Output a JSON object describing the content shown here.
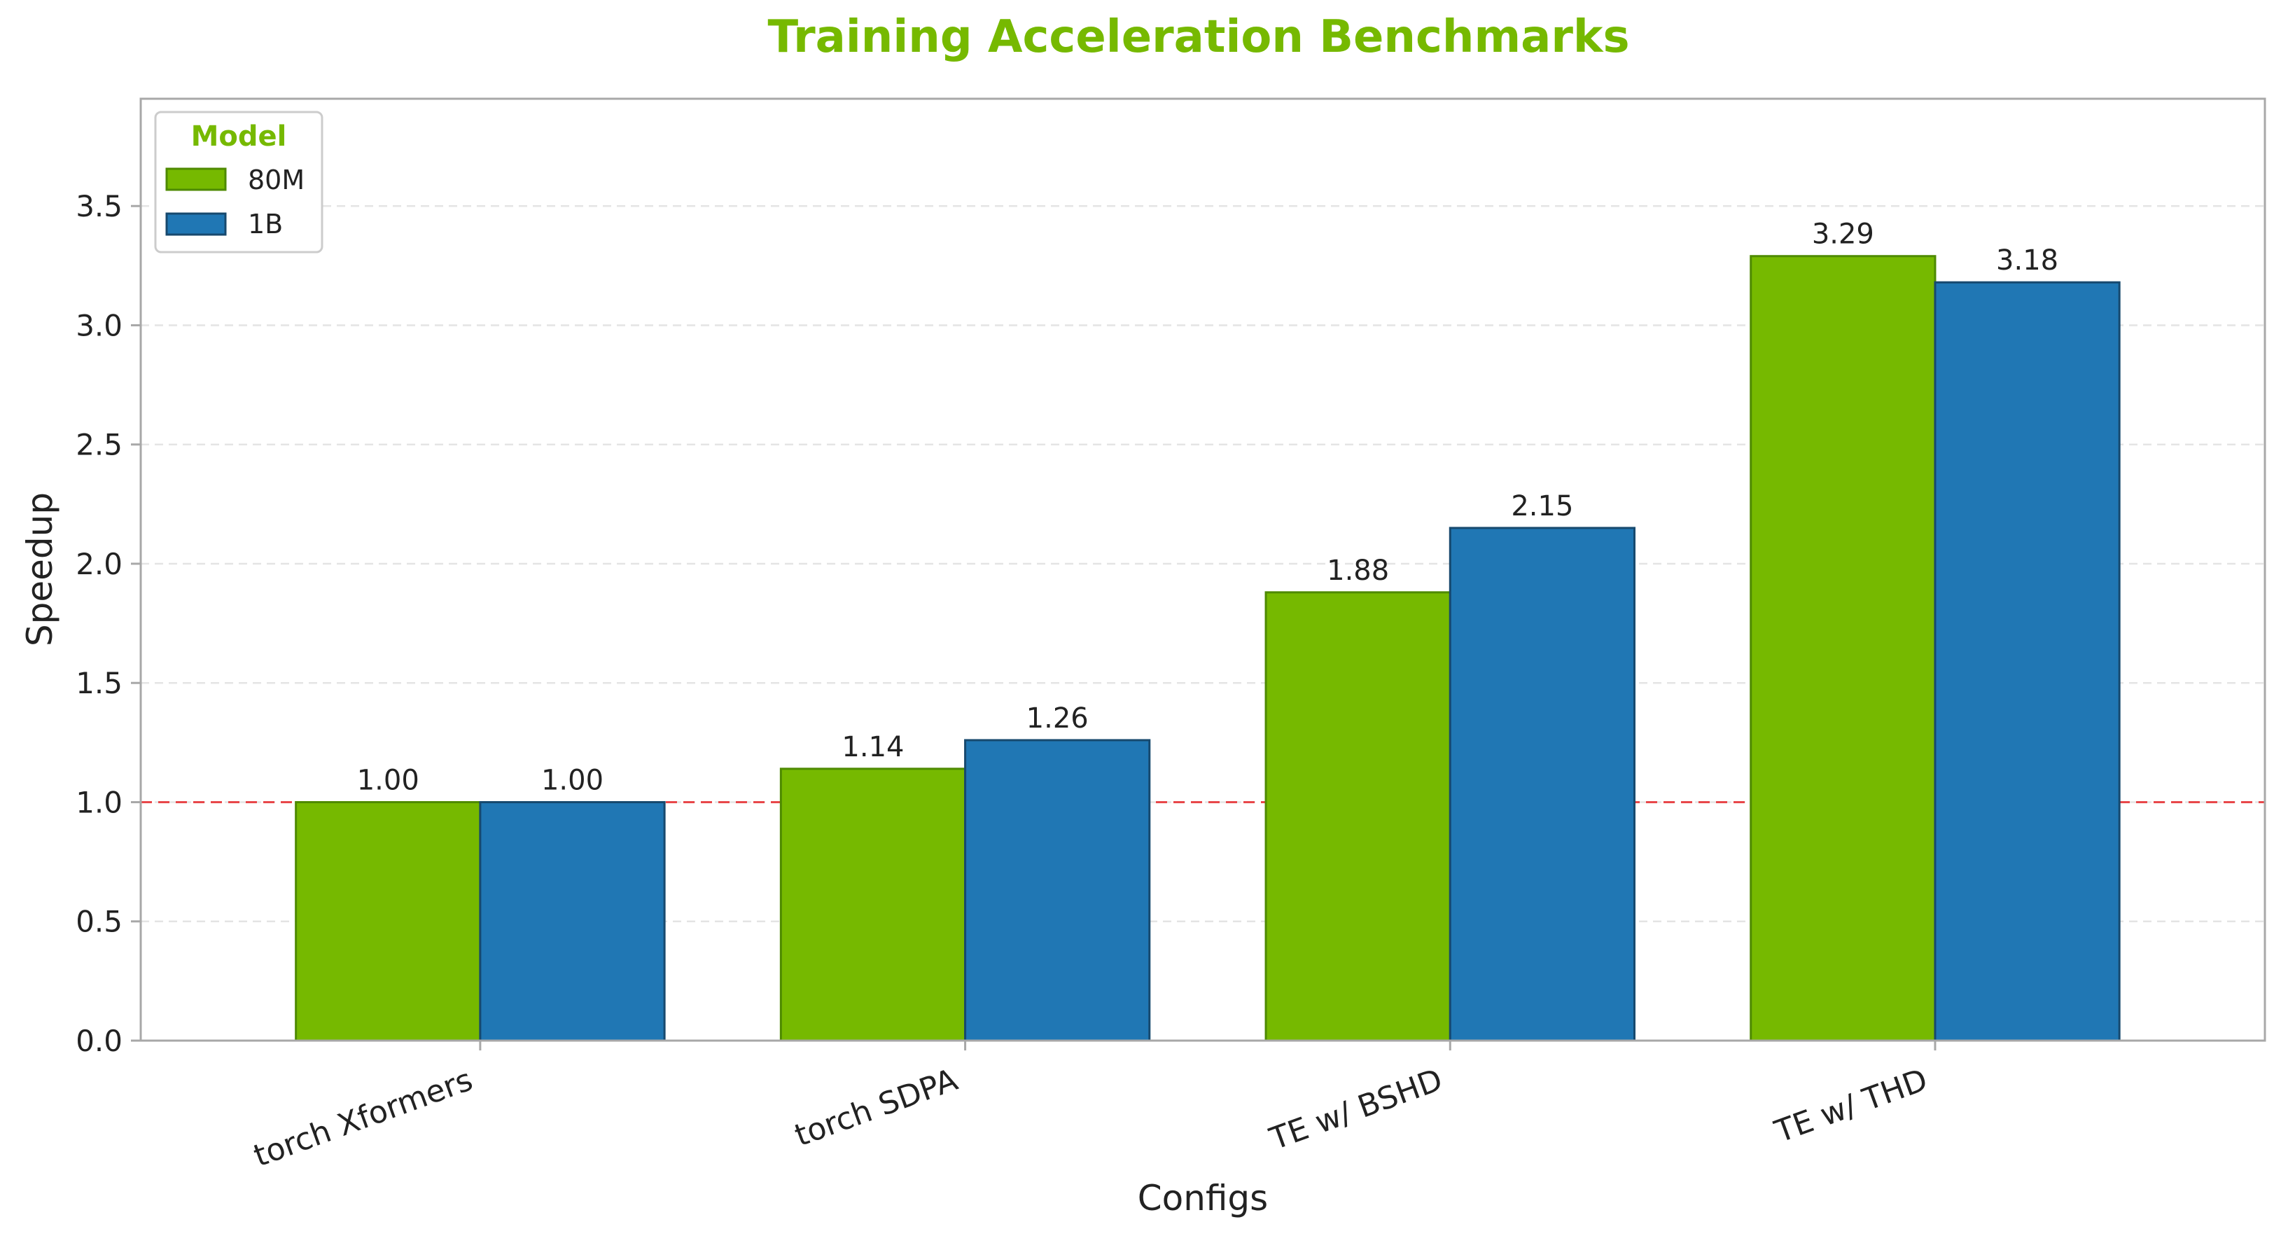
{
  "chart_data": {
    "type": "bar",
    "title": "Training Acceleration Benchmarks",
    "xlabel": "Configs",
    "ylabel": "Speedup",
    "categories": [
      "torch Xformers",
      "torch SDPA",
      "TE w/ BSHD",
      "TE w/ THD"
    ],
    "series": [
      {
        "name": "80M",
        "values": [
          1.0,
          1.14,
          1.88,
          3.29
        ],
        "color": "#76B900",
        "edge_color": "#4E8A00"
      },
      {
        "name": "1B",
        "values": [
          1.0,
          1.26,
          2.15,
          3.18
        ],
        "color": "#2077B4",
        "edge_color": "#17496E"
      }
    ],
    "value_labels": [
      [
        "1.00",
        "1.14",
        "1.88",
        "3.29"
      ],
      [
        "1.00",
        "1.26",
        "2.15",
        "3.18"
      ]
    ],
    "ylim": [
      0,
      3.95
    ],
    "yticks": [
      0.0,
      0.5,
      1.0,
      1.5,
      2.0,
      2.5,
      3.0,
      3.5
    ],
    "ytick_labels": [
      "0.0",
      "0.5",
      "1.0",
      "1.5",
      "2.0",
      "2.5",
      "3.0",
      "3.5"
    ],
    "baseline": {
      "value": 1.0,
      "color": "#E8474A",
      "style": "dashed"
    },
    "grid": "y-dashed",
    "legend": {
      "title": "Model",
      "position": "top-left"
    },
    "colors": {
      "title": "#76B900",
      "axis_spine": "#A8A8A8",
      "grid": "#E4E4E4",
      "text": "#222222"
    }
  }
}
